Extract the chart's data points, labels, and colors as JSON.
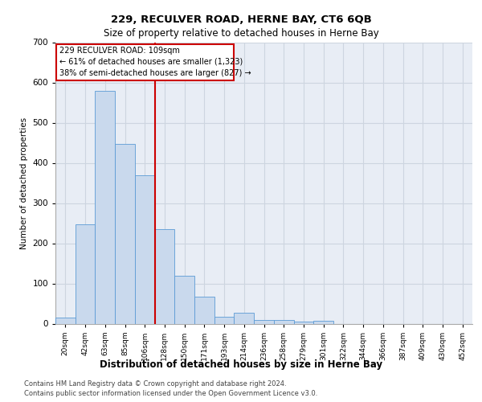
{
  "title1": "229, RECULVER ROAD, HERNE BAY, CT6 6QB",
  "title2": "Size of property relative to detached houses in Herne Bay",
  "xlabel": "Distribution of detached houses by size in Herne Bay",
  "ylabel": "Number of detached properties",
  "categories": [
    "20sqm",
    "42sqm",
    "63sqm",
    "85sqm",
    "106sqm",
    "128sqm",
    "150sqm",
    "171sqm",
    "193sqm",
    "214sqm",
    "236sqm",
    "258sqm",
    "279sqm",
    "301sqm",
    "322sqm",
    "344sqm",
    "366sqm",
    "387sqm",
    "409sqm",
    "430sqm",
    "452sqm"
  ],
  "values": [
    15,
    248,
    580,
    448,
    370,
    235,
    120,
    68,
    18,
    28,
    10,
    10,
    6,
    7,
    0,
    0,
    0,
    0,
    0,
    0,
    0
  ],
  "bar_color": "#c9d9ed",
  "bar_edge_color": "#5b9bd5",
  "vline_x": 4.5,
  "vline_color": "#cc0000",
  "annotation_line1": "229 RECULVER ROAD: 109sqm",
  "annotation_line2": "← 61% of detached houses are smaller (1,323)",
  "annotation_line3": "38% of semi-detached houses are larger (827) →",
  "grid_color": "#cdd5e0",
  "background_color": "#e8edf5",
  "footer_text1": "Contains HM Land Registry data © Crown copyright and database right 2024.",
  "footer_text2": "Contains public sector information licensed under the Open Government Licence v3.0.",
  "ylim": [
    0,
    700
  ],
  "yticks": [
    0,
    100,
    200,
    300,
    400,
    500,
    600,
    700
  ]
}
